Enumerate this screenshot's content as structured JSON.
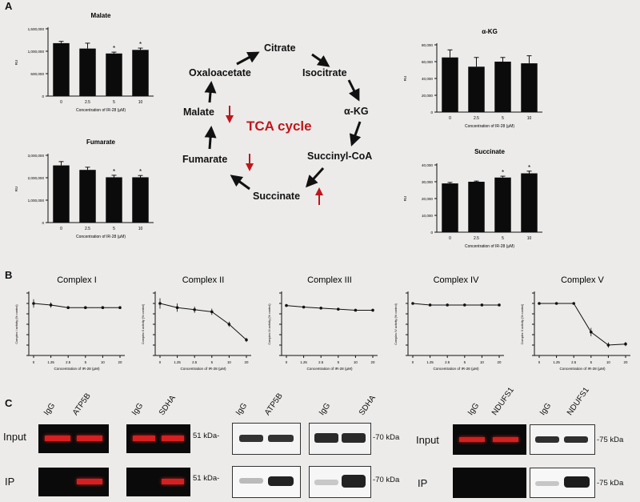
{
  "panels": {
    "a": "A",
    "b": "B",
    "c": "C"
  },
  "panel_a": {
    "tca": {
      "title": "TCA cycle",
      "nodes": {
        "citrate": "Citrate",
        "isocitrate": "Isocitrate",
        "akg": "α-KG",
        "succinyl_coa": "Succinyl-CoA",
        "succinate": "Succinate",
        "fumarate": "Fumarate",
        "malate": "Malate",
        "oxaloacetate": "Oxaloacetate"
      },
      "arrow_color": "#c0161b"
    }
  },
  "chart_data": [
    {
      "type": "bar",
      "title": "Malate",
      "categories": [
        "0",
        "2.5",
        "5",
        "10"
      ],
      "values": [
        1180000,
        1060000,
        950000,
        1030000
      ],
      "errors": [
        40000,
        120000,
        30000,
        40000
      ],
      "significant": [
        false,
        false,
        true,
        true
      ],
      "ylim": [
        0,
        1500000
      ],
      "yticks": [
        "0",
        "500,000",
        "1,000,000",
        "1,500,000"
      ],
      "ylabel": "RU",
      "xlabel": "Concentration of IR-28 (μM)"
    },
    {
      "type": "bar",
      "title": "α-KG",
      "categories": [
        "0",
        "2.5",
        "5",
        "10"
      ],
      "values": [
        65000,
        54000,
        60000,
        58000
      ],
      "errors": [
        9000,
        11000,
        5000,
        9000
      ],
      "significant": [
        false,
        false,
        false,
        false
      ],
      "ylim": [
        0,
        80000
      ],
      "yticks": [
        "0",
        "20,000",
        "40,000",
        "60,000",
        "80,000"
      ],
      "ylabel": "RU",
      "xlabel": "Concentration of IR-28 (μM)"
    },
    {
      "type": "bar",
      "title": "Fumarate",
      "categories": [
        "0",
        "2.5",
        "5",
        "10"
      ],
      "values": [
        2550000,
        2350000,
        2020000,
        2020000
      ],
      "errors": [
        170000,
        120000,
        90000,
        80000
      ],
      "significant": [
        false,
        false,
        true,
        true
      ],
      "ylim": [
        0,
        3000000
      ],
      "yticks": [
        "0",
        "1,000,000",
        "2,000,000",
        "3,000,000"
      ],
      "ylabel": "RU",
      "xlabel": "Concentration of IR-28 (μM)"
    },
    {
      "type": "bar",
      "title": "Succinate",
      "categories": [
        "0",
        "2.5",
        "5",
        "10"
      ],
      "values": [
        29000,
        30000,
        32500,
        35000
      ],
      "errors": [
        600,
        400,
        800,
        1300
      ],
      "significant": [
        false,
        false,
        true,
        true
      ],
      "ylim": [
        0,
        40000
      ],
      "yticks": [
        "0",
        "10,000",
        "20,000",
        "30,000",
        "40,000"
      ],
      "ylabel": "RU",
      "xlabel": "Concentration of IR-28 (μM)"
    },
    {
      "type": "line",
      "title": "Complex I",
      "x": [
        "0",
        "1.25",
        "2.5",
        "5",
        "10",
        "20"
      ],
      "values": [
        100,
        97,
        92,
        92,
        92,
        92
      ],
      "errors": [
        8,
        5,
        2,
        1,
        1,
        1
      ],
      "ylim": [
        0,
        120
      ],
      "ylabel": "Complex I activity (% control)",
      "xlabel": "Concentration of IR-28 (μM)"
    },
    {
      "type": "line",
      "title": "Complex II",
      "x": [
        "0",
        "1.25",
        "2.5",
        "5",
        "10",
        "20"
      ],
      "values": [
        100,
        92,
        88,
        84,
        60,
        30
      ],
      "errors": [
        10,
        8,
        6,
        6,
        5,
        4
      ],
      "ylim": [
        0,
        120
      ],
      "ylabel": "Complex II activity (% control)",
      "xlabel": "Concentration of IR-28 (μM)"
    },
    {
      "type": "line",
      "title": "Complex III",
      "x": [
        "0",
        "1.25",
        "2.5",
        "5",
        "10",
        "20"
      ],
      "values": [
        96,
        93,
        91,
        89,
        87,
        87
      ],
      "errors": [
        1,
        1,
        1,
        1,
        1,
        1
      ],
      "ylim": [
        0,
        120
      ],
      "ylabel": "Complex III activity (% control)",
      "xlabel": "Concentration of IR-28 (μM)"
    },
    {
      "type": "line",
      "title": "Complex IV",
      "x": [
        "0",
        "1.25",
        "2.5",
        "5",
        "10",
        "20"
      ],
      "values": [
        100,
        97,
        97,
        97,
        97,
        97
      ],
      "errors": [
        2,
        1,
        1,
        1,
        1,
        1
      ],
      "ylim": [
        0,
        120
      ],
      "ylabel": "Complex IV activity (% control)",
      "xlabel": "Concentration of IR-28 (μM)"
    },
    {
      "type": "line",
      "title": "Complex V",
      "x": [
        "0",
        "1.25",
        "2.5",
        "5",
        "10",
        "20"
      ],
      "values": [
        100,
        100,
        100,
        45,
        20,
        22
      ],
      "errors": [
        2,
        2,
        2,
        8,
        5,
        4
      ],
      "ylim": [
        0,
        120
      ],
      "ylabel": "Complex V activity (% control)",
      "xlabel": "Concentration of IR-28 (μM)"
    }
  ],
  "panel_c": {
    "row_input": "Input",
    "row_ip": "IP",
    "lanes": {
      "igg": "IgG",
      "atp5b": "ATP5B",
      "sdha": "SDHA",
      "ndufs1": "NDUFS1"
    },
    "kda_51": "51 kDa-",
    "kda_70": "-70 kDa",
    "kda_75": "-75 kDa",
    "band_color_red": "#d42020"
  }
}
